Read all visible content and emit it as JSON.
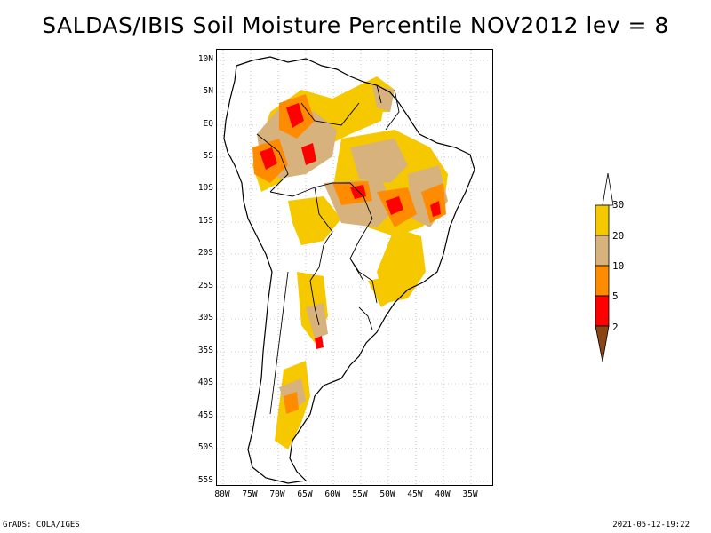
{
  "title": "SALDAS/IBIS Soil Moisture Percentile NOV2012 lev = 8",
  "lat_labels": [
    "10N",
    "5N",
    "EQ",
    "5S",
    "10S",
    "15S",
    "20S",
    "25S",
    "30S",
    "35S",
    "40S",
    "45S",
    "50S",
    "55S"
  ],
  "lon_labels": [
    "80W",
    "75W",
    "70W",
    "65W",
    "60W",
    "55W",
    "50W",
    "45W",
    "40W",
    "35W"
  ],
  "legend": {
    "labels": [
      "30",
      "20",
      "10",
      "5",
      "2"
    ],
    "colors": {
      "above_30": "#ffffff",
      "20_30": "#f5c800",
      "10_20": "#d7b27c",
      "5_10": "#ff8c00",
      "2_5": "#ff0000",
      "below_2": "#8b4513"
    }
  },
  "footer": {
    "left": "GrADS: COLA/IGES",
    "right": "2021-05-12-19:22"
  }
}
